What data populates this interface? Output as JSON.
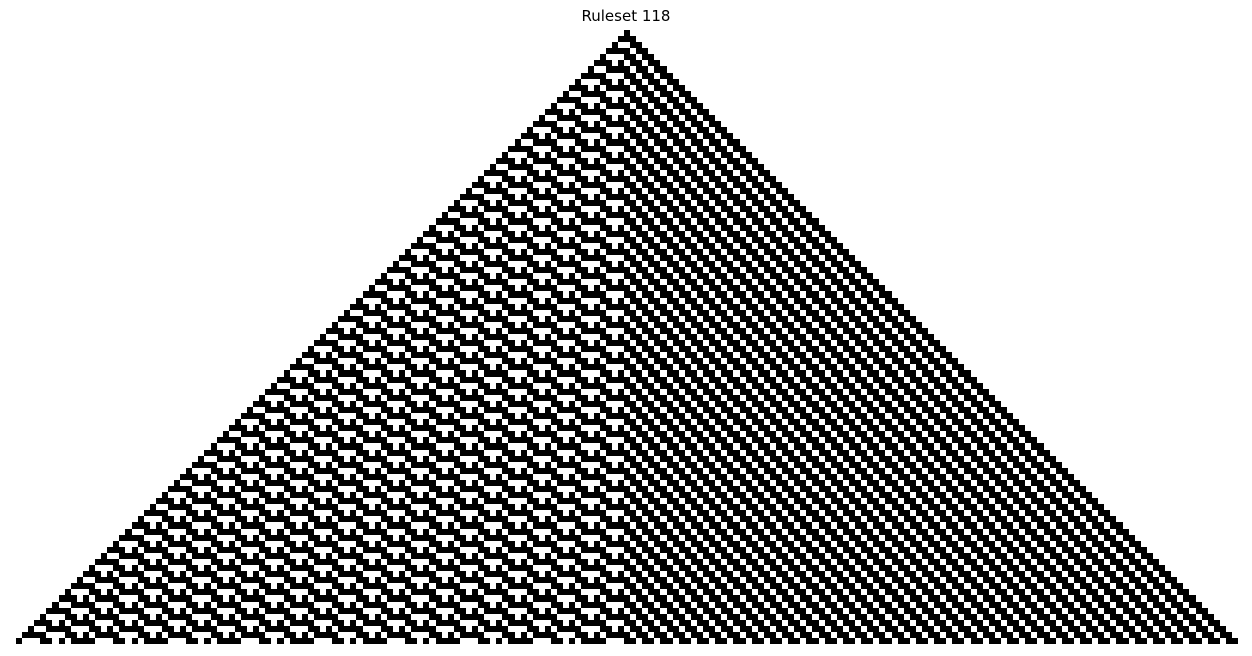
{
  "figure": {
    "title": "Ruleset 118"
  },
  "automaton": {
    "rule": 118,
    "generations": 101,
    "initial_state": "single-center-cell",
    "alive_color": "#000000",
    "dead_color": "#ffffff"
  }
}
